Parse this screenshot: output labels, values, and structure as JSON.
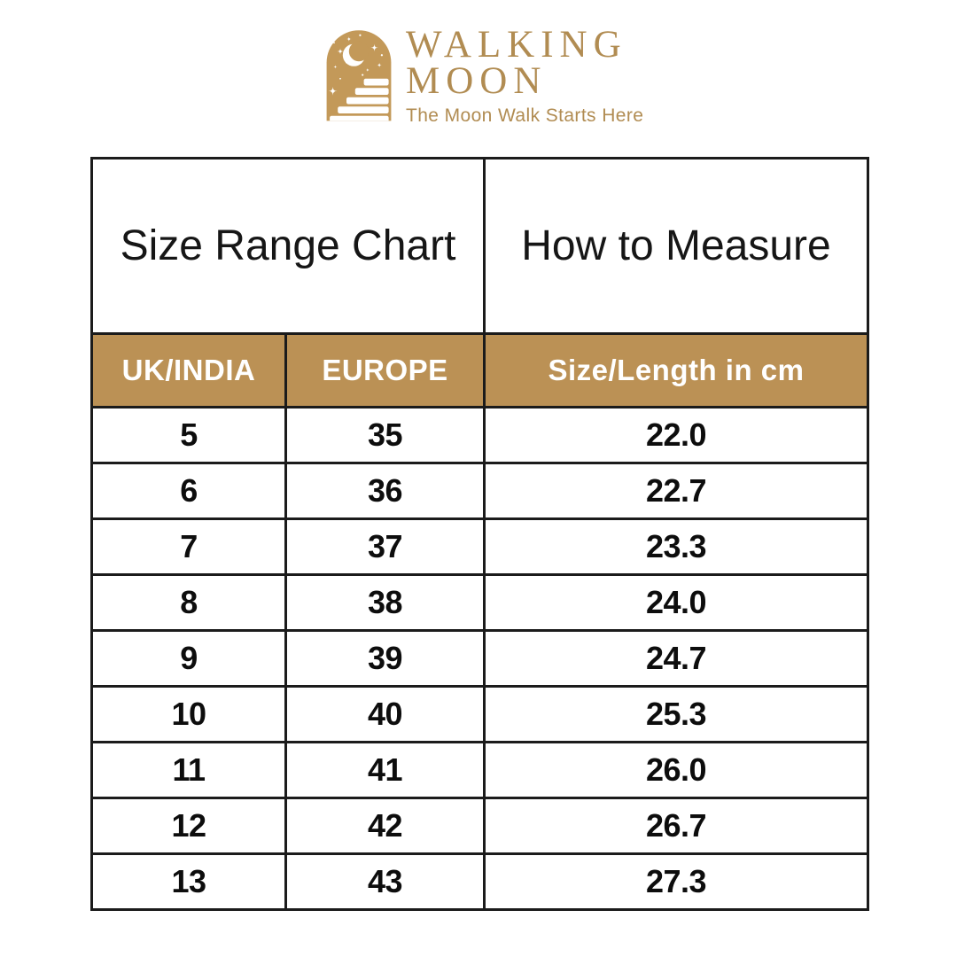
{
  "brand": {
    "name_line1": "WALKING",
    "name_line2": "MOON",
    "tagline": "The Moon Walk Starts Here"
  },
  "colors": {
    "gold_text": "#B18C52",
    "logo_tan": "#C39959",
    "table_header_tan": "#BB9155",
    "border": "#1b1b1b",
    "data_text": "#0d0d0d"
  },
  "icons": {
    "logo": "moon-stairs-arch-icon"
  },
  "table": {
    "section_headers": [
      "Size Range Chart",
      "How to Measure"
    ],
    "columns": [
      "UK/INDIA",
      "EUROPE",
      "Size/Length in cm"
    ],
    "rows": [
      [
        "5",
        "35",
        "22.0"
      ],
      [
        "6",
        "36",
        "22.7"
      ],
      [
        "7",
        "37",
        "23.3"
      ],
      [
        "8",
        "38",
        "24.0"
      ],
      [
        "9",
        "39",
        "24.7"
      ],
      [
        "10",
        "40",
        "25.3"
      ],
      [
        "11",
        "41",
        "26.0"
      ],
      [
        "12",
        "42",
        "26.7"
      ],
      [
        "13",
        "43",
        "27.3"
      ]
    ]
  },
  "chart_data": {
    "type": "table",
    "title": "Size Range Chart",
    "columns": [
      "UK/INDIA",
      "EUROPE",
      "Size/Length in cm"
    ],
    "rows": [
      [
        5,
        35,
        22.0
      ],
      [
        6,
        36,
        22.7
      ],
      [
        7,
        37,
        23.3
      ],
      [
        8,
        38,
        24.0
      ],
      [
        9,
        39,
        24.7
      ],
      [
        10,
        40,
        25.3
      ],
      [
        11,
        41,
        26.0
      ],
      [
        12,
        42,
        26.7
      ],
      [
        13,
        43,
        27.3
      ]
    ]
  }
}
